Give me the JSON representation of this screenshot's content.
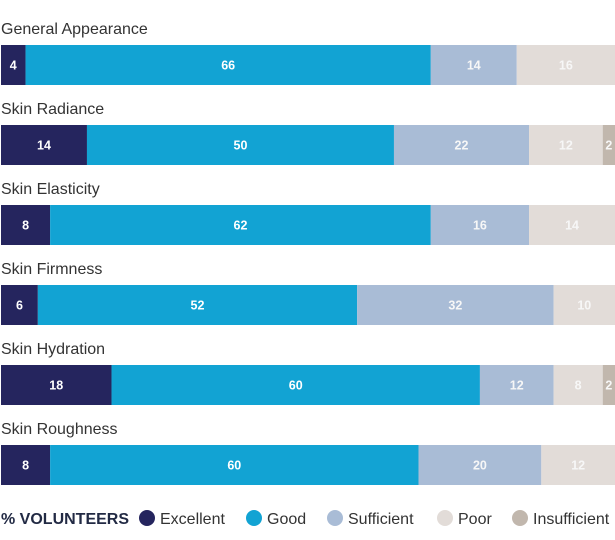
{
  "chart_data": {
    "type": "bar",
    "orientation": "horizontal",
    "stacked": true,
    "categories": [
      "General Appearance",
      "Skin Radiance",
      "Skin Elasticity",
      "Skin Firmness",
      "Skin Hydration",
      "Skin Roughness"
    ],
    "series": [
      {
        "name": "Excellent",
        "color": "#25255e",
        "values": [
          4,
          14,
          8,
          6,
          18,
          8
        ]
      },
      {
        "name": "Good",
        "color": "#12a3d3",
        "values": [
          66,
          50,
          62,
          52,
          60,
          60
        ]
      },
      {
        "name": "Sufficient",
        "color": "#a9bcd6",
        "values": [
          14,
          22,
          16,
          32,
          12,
          20
        ]
      },
      {
        "name": "Poor",
        "color": "#e2dcd8",
        "values": [
          16,
          12,
          14,
          10,
          8,
          12
        ]
      },
      {
        "name": "Insufficient",
        "color": "#c1b7ad",
        "values": [
          0,
          2,
          0,
          0,
          2,
          0
        ]
      }
    ],
    "xlim": [
      0,
      100
    ],
    "legend_title": "% VOLUNTEERS",
    "legend_position": "bottom"
  }
}
